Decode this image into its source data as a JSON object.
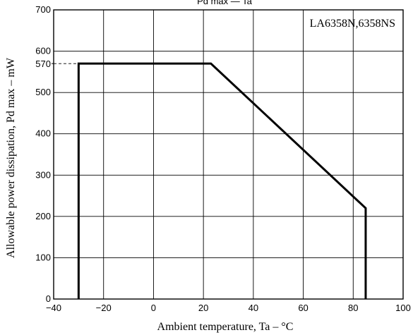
{
  "chart_data": {
    "type": "line",
    "title": "Pd max — Ta",
    "annotation": "LA6358N,6358NS",
    "xlabel": "Ambient temperature,  Ta  –  °C",
    "ylabel": "Allowable power dissipation,  Pd max  –  mW",
    "xlim": [
      -40,
      100
    ],
    "ylim": [
      0,
      700
    ],
    "x_ticks": [
      -40,
      -20,
      0,
      20,
      40,
      60,
      80,
      100
    ],
    "y_ticks": [
      0,
      100,
      200,
      300,
      400,
      500,
      600,
      700
    ],
    "extra_y_tick": 570,
    "grid": true,
    "series": [
      {
        "x": [
          -30,
          -30,
          23,
          85,
          85
        ],
        "y": [
          0,
          570,
          570,
          220,
          0
        ]
      }
    ],
    "reference_line": {
      "y": 570,
      "from_x": -40,
      "to_x": -30,
      "style": "dashed"
    }
  }
}
